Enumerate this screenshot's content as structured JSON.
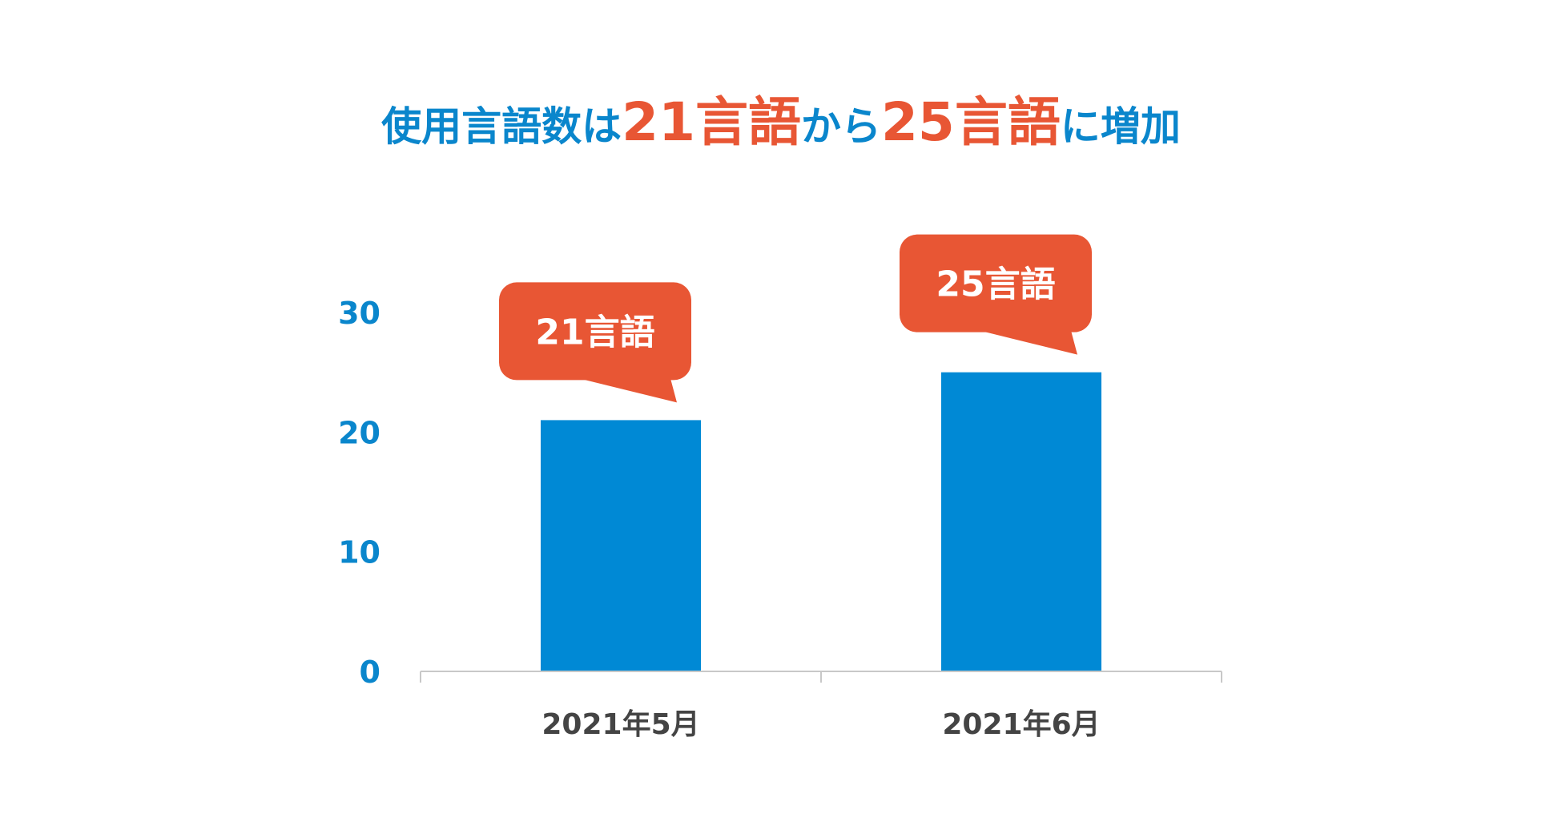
{
  "chart_data": {
    "type": "bar",
    "title_parts": [
      {
        "text": "使用言語数は",
        "accent": false
      },
      {
        "text": "21言語",
        "accent": true
      },
      {
        "text": "から",
        "accent": false
      },
      {
        "text": "25言語",
        "accent": true
      },
      {
        "text": "に増加",
        "accent": false
      }
    ],
    "categories": [
      "2021年5月",
      "2021年6月"
    ],
    "values": [
      21,
      25
    ],
    "callouts": [
      "21言語",
      "25言語"
    ],
    "yticks": [
      0,
      10,
      20,
      30
    ],
    "ylim": [
      0,
      35
    ],
    "grid": false,
    "xlabel": "",
    "ylabel": ""
  },
  "colors": {
    "bar": "#0089d5",
    "callout": "#e85634",
    "title_plain": "#0a86cc",
    "title_accent": "#e85634",
    "ytick": "#0a86cc",
    "xtick": "#444444",
    "axis": "#c8c8c8",
    "callout_text": "#ffffff"
  }
}
